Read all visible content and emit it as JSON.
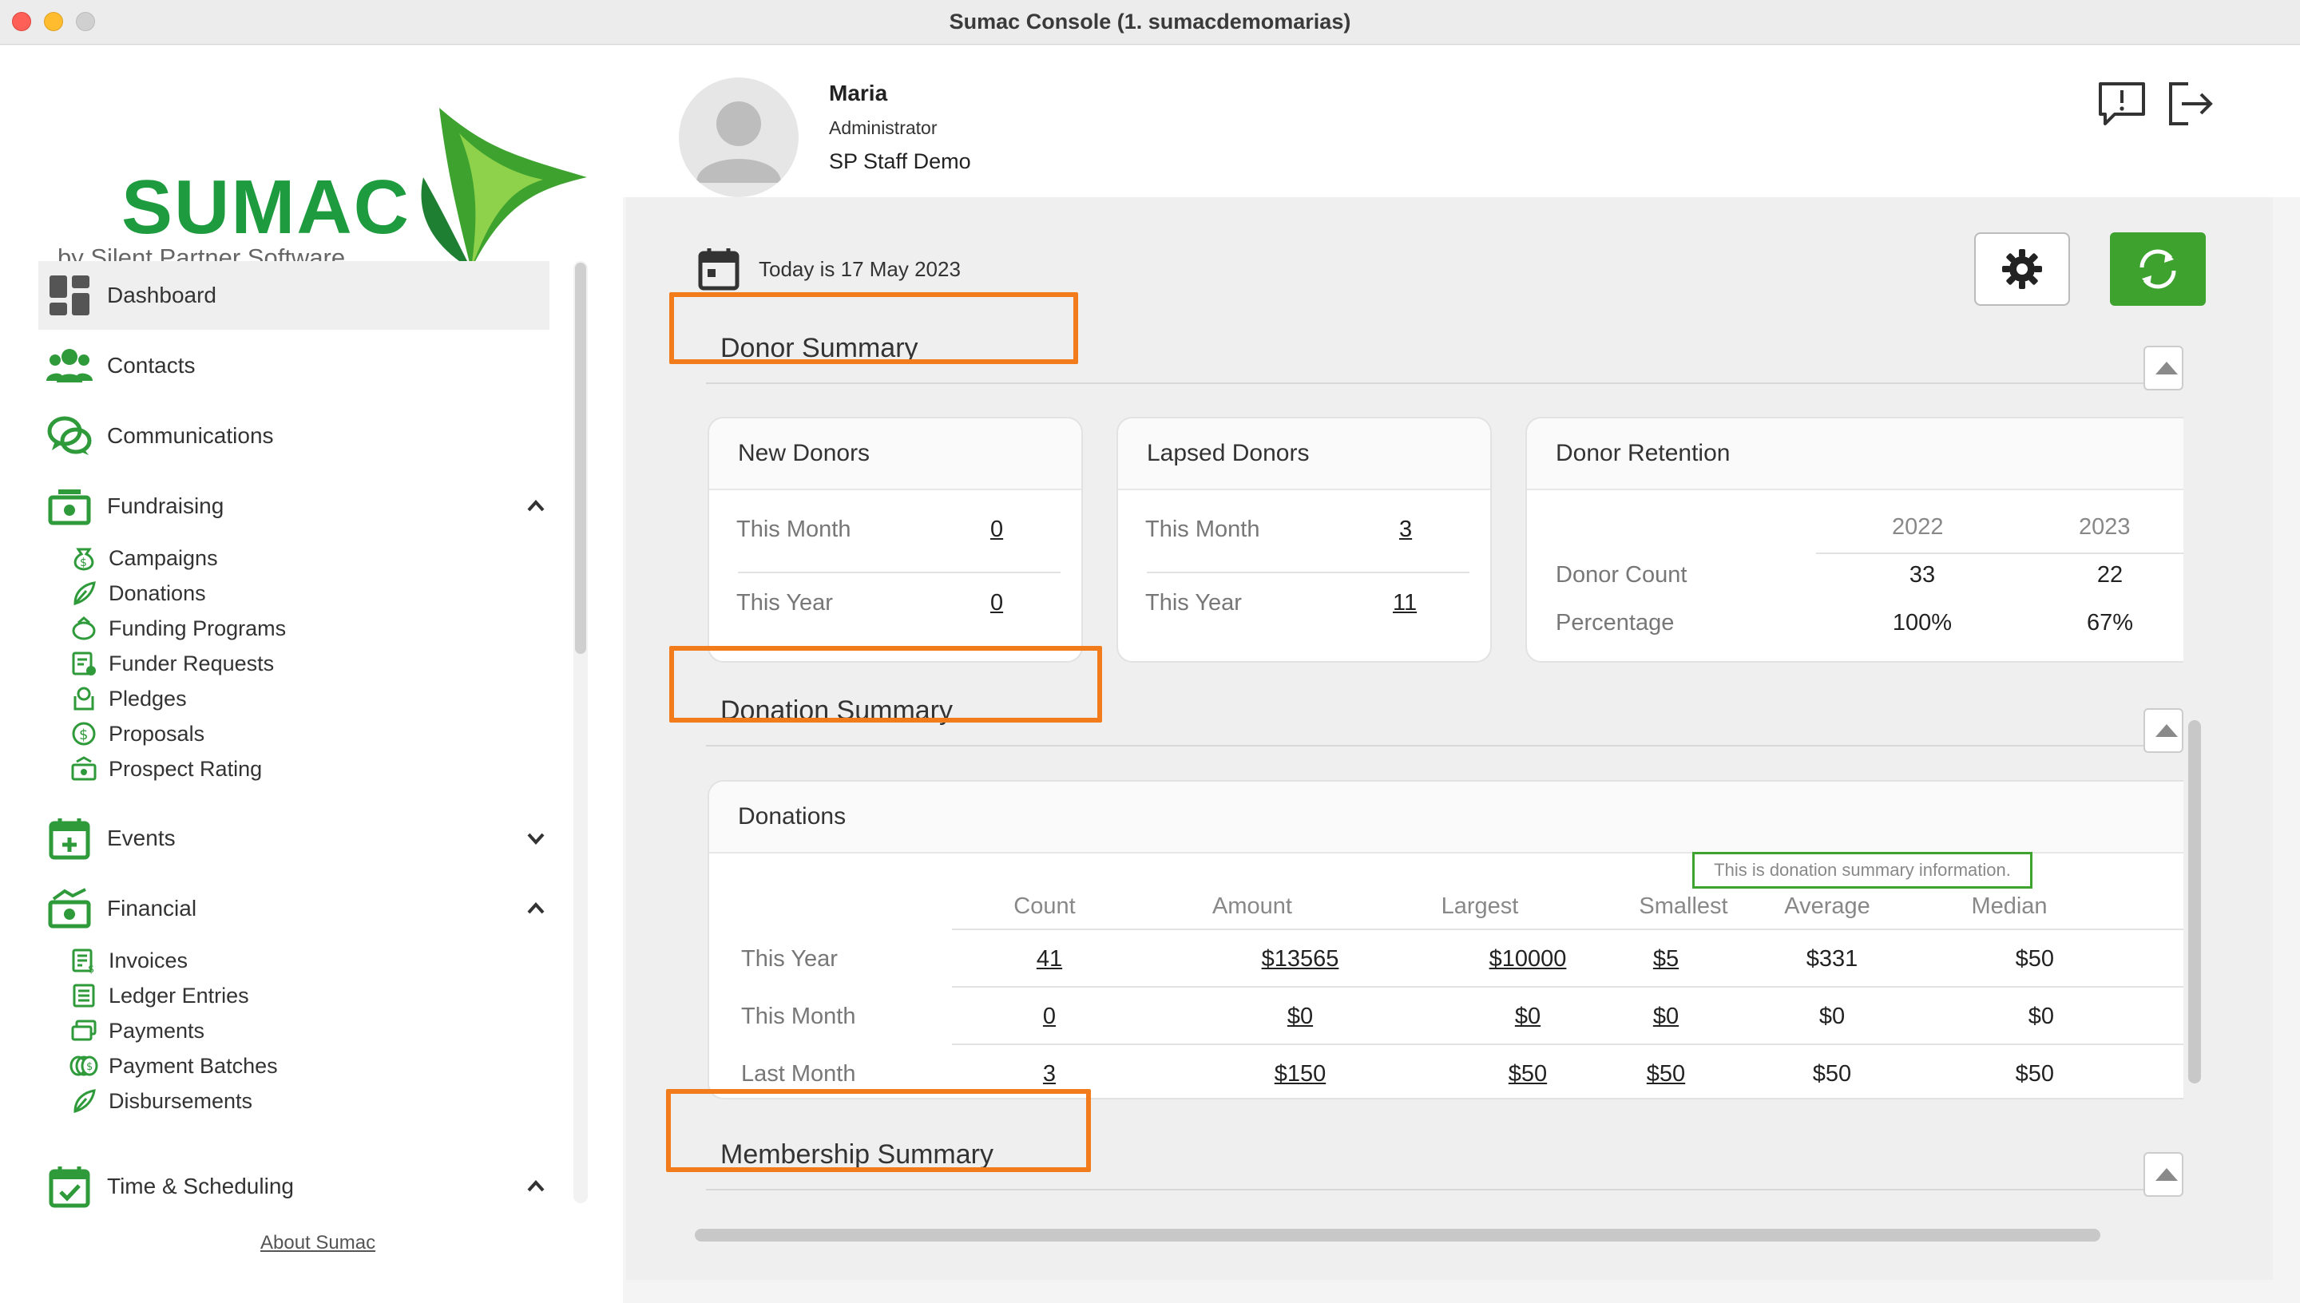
{
  "window": {
    "title": "Sumac Console (1. sumacdemomarias)"
  },
  "brand": {
    "name": "SUMAC",
    "tagline": "by Silent Partner Software",
    "logo_color": "#1e9b3e"
  },
  "user": {
    "name": "Maria",
    "role": "Administrator",
    "org": "SP Staff Demo"
  },
  "colors": {
    "accent": "#3ea22f",
    "highlight": "#f27c1c"
  },
  "sidebar": {
    "items": [
      {
        "label": "Dashboard",
        "icon": "dashboard-icon"
      },
      {
        "label": "Contacts",
        "icon": "contacts-icon"
      },
      {
        "label": "Communications",
        "icon": "communications-icon"
      },
      {
        "label": "Fundraising",
        "icon": "fundraising-icon",
        "expanded": true,
        "children": [
          {
            "label": "Campaigns",
            "icon": "campaigns-icon"
          },
          {
            "label": "Donations",
            "icon": "donations-icon"
          },
          {
            "label": "Funding Programs",
            "icon": "funding-programs-icon"
          },
          {
            "label": "Funder Requests",
            "icon": "funder-requests-icon"
          },
          {
            "label": "Pledges",
            "icon": "pledges-icon"
          },
          {
            "label": "Proposals",
            "icon": "proposals-icon"
          },
          {
            "label": "Prospect Rating",
            "icon": "prospect-rating-icon"
          }
        ]
      },
      {
        "label": "Events",
        "icon": "events-icon",
        "expanded": false
      },
      {
        "label": "Financial",
        "icon": "financial-icon",
        "expanded": true,
        "children": [
          {
            "label": "Invoices",
            "icon": "invoices-icon"
          },
          {
            "label": "Ledger Entries",
            "icon": "ledger-entries-icon"
          },
          {
            "label": "Payments",
            "icon": "payments-icon"
          },
          {
            "label": "Payment Batches",
            "icon": "payment-batches-icon"
          },
          {
            "label": "Disbursements",
            "icon": "disbursements-icon"
          }
        ]
      },
      {
        "label": "Time & Scheduling",
        "icon": "time-scheduling-icon",
        "expanded": true
      }
    ],
    "about_link": "About Sumac"
  },
  "main": {
    "today": "Today is 17 May 2023",
    "donor_summary": {
      "title": "Donor Summary",
      "new_donors": {
        "title": "New Donors",
        "this_month_label": "This Month",
        "this_month": "0",
        "this_year_label": "This Year",
        "this_year": "0"
      },
      "lapsed_donors": {
        "title": "Lapsed Donors",
        "this_month_label": "This Month",
        "this_month": "3",
        "this_year_label": "This Year",
        "this_year": "11"
      },
      "retention": {
        "title": "Donor Retention",
        "years": [
          "2022",
          "2023"
        ],
        "count_label": "Donor Count",
        "count": [
          "33",
          "22"
        ],
        "pct_label": "Percentage",
        "pct": [
          "100%",
          "67%"
        ]
      }
    },
    "donation_summary": {
      "title": "Donation Summary",
      "card_title": "Donations",
      "tooltip": "This is donation summary information.",
      "columns": [
        "Count",
        "Amount",
        "Largest",
        "Smallest",
        "Average",
        "Median"
      ],
      "rows": [
        {
          "label": "This Year",
          "values": [
            "41",
            "$13565",
            "$10000",
            "$5",
            "$331",
            "$50"
          ]
        },
        {
          "label": "This Month",
          "values": [
            "0",
            "$0",
            "$0",
            "$0",
            "$0",
            "$0"
          ]
        },
        {
          "label": "Last Month",
          "values": [
            "3",
            "$150",
            "$50",
            "$50",
            "$50",
            "$50"
          ]
        }
      ]
    },
    "membership_summary": {
      "title": "Membership Summary"
    }
  }
}
